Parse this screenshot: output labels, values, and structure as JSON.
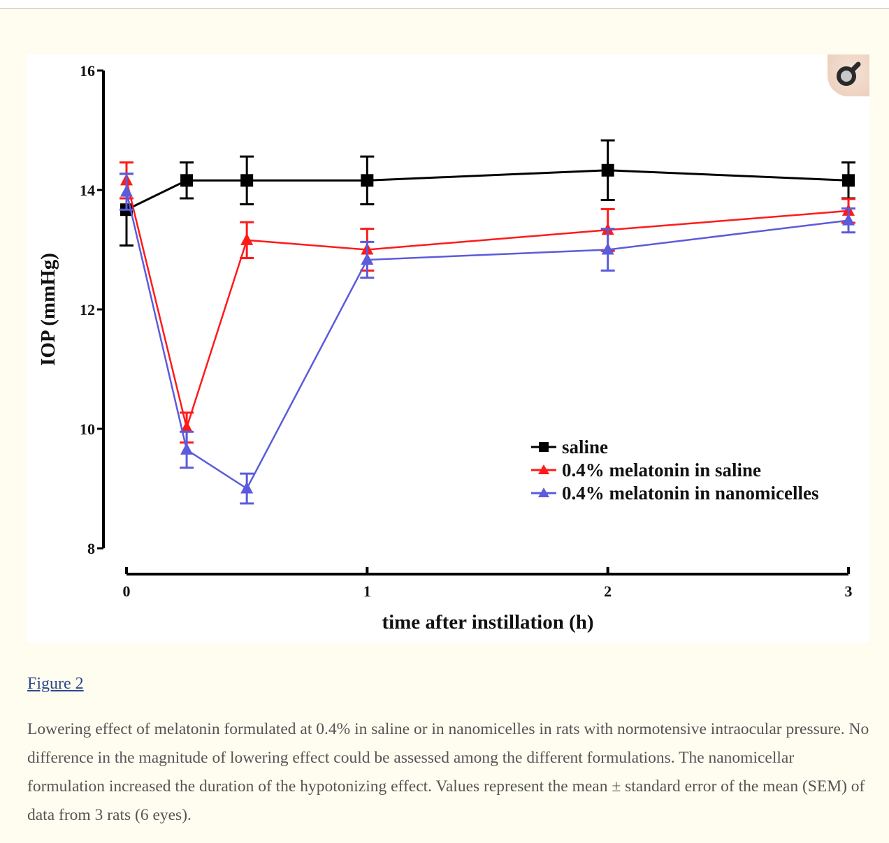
{
  "figure": {
    "link_label": "Figure 2",
    "expand_icon": "magnify-icon",
    "caption": "Lowering effect of melatonin formulated at 0.4% in saline or in nanomicelles in rats with normotensive intraocular pressure. No difference in the magnitude of lowering effect could be assessed among the different formulations. The nanomicellar formulation increased the duration of the hypotonizing effect. Values represent the mean ± standard error of the mean (SEM) of data from 3 rats (6 eyes)."
  },
  "chart_data": {
    "type": "line",
    "title": "",
    "xlabel": "time after instillation (h)",
    "ylabel": "IOP (mmHg)",
    "xlim": [
      0,
      3
    ],
    "ylim": [
      8,
      16
    ],
    "xticks": [
      "0",
      "1",
      "2",
      "3"
    ],
    "yticks": [
      "8",
      "10",
      "12",
      "14",
      "16"
    ],
    "grid": false,
    "legend_position": "bottom-right",
    "x": [
      0,
      0.25,
      0.5,
      1,
      2,
      3
    ],
    "series": [
      {
        "name": "saline",
        "color": "#000000",
        "marker": "square",
        "values": [
          13.67,
          14.16,
          14.16,
          14.16,
          14.33,
          14.16
        ],
        "error": [
          0.6,
          0.3,
          0.4,
          0.4,
          0.5,
          0.3
        ]
      },
      {
        "name": "0.4% melatonin in saline",
        "color": "#ff1a1a",
        "marker": "triangle",
        "values": [
          14.16,
          10.02,
          13.16,
          13.0,
          13.33,
          13.65
        ],
        "error": [
          0.3,
          0.25,
          0.3,
          0.35,
          0.35,
          0.2
        ]
      },
      {
        "name": "0.4% melatonin in nanomicelles",
        "color": "#5b5bdc",
        "marker": "triangle",
        "values": [
          13.97,
          9.65,
          9.0,
          12.83,
          13.0,
          13.49
        ],
        "error": [
          0.3,
          0.3,
          0.25,
          0.3,
          0.35,
          0.2
        ]
      }
    ]
  }
}
